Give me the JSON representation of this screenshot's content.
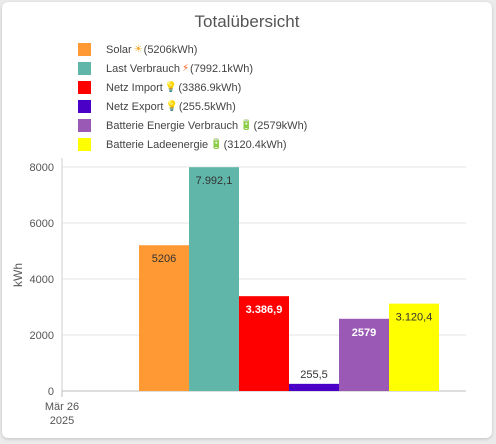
{
  "title": "Totalübersicht",
  "legend": [
    {
      "label": "Solar",
      "icon": "sun-icon",
      "icon_glyph": "☀",
      "icon_color": "#f5a623",
      "value_text": "(5206kWh)",
      "color": "#ff9933"
    },
    {
      "label": "Last Verbrauch",
      "icon": "lightning-icon",
      "icon_glyph": "⚡",
      "icon_color": "#f25a1a",
      "value_text": "(7992.1kWh)",
      "color": "#5fb6a9"
    },
    {
      "label": "Netz Import",
      "icon": "lightbulb-icon",
      "icon_glyph": "💡",
      "icon_color": "#f5c518",
      "value_text": "(3386.9kWh)",
      "color": "#ff0000"
    },
    {
      "label": "Netz Export",
      "icon": "lightbulb-icon",
      "icon_glyph": "💡",
      "icon_color": "#f5c518",
      "value_text": "(255.5kWh)",
      "color": "#4b00c8"
    },
    {
      "label": "Batterie Energie Verbrauch",
      "icon": "battery-low-icon",
      "icon_glyph": "🔋",
      "icon_color": "#9a9aa8",
      "value_text": "(2579kWh)",
      "color": "#9b59b6"
    },
    {
      "label": "Batterie Ladeenergie",
      "icon": "battery-full-icon",
      "icon_glyph": "🔋",
      "icon_color": "#3cb043",
      "value_text": "(3120.4kWh)",
      "color": "#ffff00"
    }
  ],
  "chart_data": {
    "type": "bar",
    "title": "Totalübersicht",
    "ylabel": "kWh",
    "ylim": [
      0,
      8000
    ],
    "yticks": [
      0,
      2000,
      4000,
      6000,
      8000
    ],
    "x_tick_label": [
      "Mär 26",
      "2025"
    ],
    "grid": true,
    "legend_position": "top",
    "series": [
      {
        "name": "Solar",
        "value": 5206,
        "data_label": "5206",
        "color": "#ff9933",
        "label_color": "#333333"
      },
      {
        "name": "Last Verbrauch",
        "value": 7992.1,
        "data_label": "7.992,1",
        "color": "#5fb6a9",
        "label_color": "#333333"
      },
      {
        "name": "Netz Import",
        "value": 3386.9,
        "data_label": "3.386,9",
        "color": "#ff0000",
        "label_color": "#ffffff"
      },
      {
        "name": "Netz Export",
        "value": 255.5,
        "data_label": "255,5",
        "color": "#4b00c8",
        "label_color": "#333333"
      },
      {
        "name": "Batterie Energie Verbrauch",
        "value": 2579,
        "data_label": "2579",
        "color": "#9b59b6",
        "label_color": "#ffffff"
      },
      {
        "name": "Batterie Ladeenergie",
        "value": 3120.4,
        "data_label": "3.120,4",
        "color": "#ffff00",
        "label_color": "#333333"
      }
    ]
  }
}
